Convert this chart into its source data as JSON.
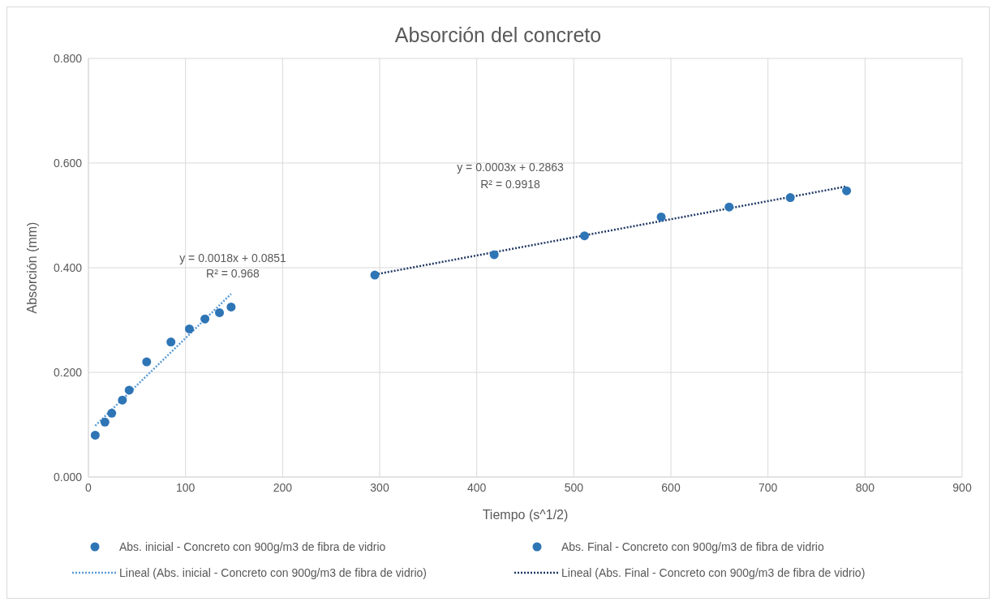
{
  "chart_data": {
    "type": "scatter",
    "title": "Absorción del concreto",
    "xlabel": "Tiempo (s^1/2)",
    "ylabel": "Absorción (mm)",
    "xlim": [
      0,
      900
    ],
    "xticks": [
      0,
      100,
      200,
      300,
      400,
      500,
      600,
      700,
      800,
      900
    ],
    "ylim": [
      0,
      0.8
    ],
    "yticks": [
      {
        "value": 0,
        "label": "0.000"
      },
      {
        "value": 0.2,
        "label": "0.200"
      },
      {
        "value": 0.4,
        "label": "0.400"
      },
      {
        "value": 0.6,
        "label": "0.600"
      },
      {
        "value": 0.8,
        "label": "0.800"
      }
    ],
    "grid": true,
    "legend": "bottom",
    "series": [
      {
        "name": "Abs. inicial - Concreto con 900g/m3 de fibra de vidrio",
        "marker": "circle",
        "color": "#2e75b6",
        "x": [
          7,
          17,
          24,
          35,
          42,
          60,
          85,
          104,
          120,
          135,
          147
        ],
        "values": [
          0.08,
          0.105,
          0.122,
          0.147,
          0.166,
          0.22,
          0.258,
          0.283,
          0.302,
          0.314,
          0.325
        ]
      },
      {
        "name": "Abs. Final - Concreto con 900g/m3 de fibra de vidrio",
        "marker": "circle",
        "color": "#2e75b6",
        "x": [
          295,
          418,
          511,
          590,
          660,
          723,
          781
        ],
        "values": [
          0.386,
          0.425,
          0.461,
          0.497,
          0.516,
          0.534,
          0.547
        ]
      },
      {
        "name": "Lineal (Abs. inicial - Concreto con 900g/m3 de fibra de vidrio)",
        "type": "line",
        "marker": "none",
        "line_style": "dotted",
        "color": "#5b9bd5",
        "x": [
          7,
          147
        ],
        "values": [
          0.098,
          0.35
        ]
      },
      {
        "name": "Lineal (Abs. Final - Concreto con 900g/m3 de fibra de vidrio)",
        "type": "line",
        "marker": "none",
        "line_style": "dotted",
        "color": "#1f3864",
        "x": [
          295,
          780
        ],
        "values": [
          0.387,
          0.555
        ]
      }
    ],
    "annotations": [
      "y = 0.0018x + 0.0851",
      "R² = 0.968",
      "y = 0.0003x + 0.2863",
      "R² = 0.9918"
    ]
  }
}
